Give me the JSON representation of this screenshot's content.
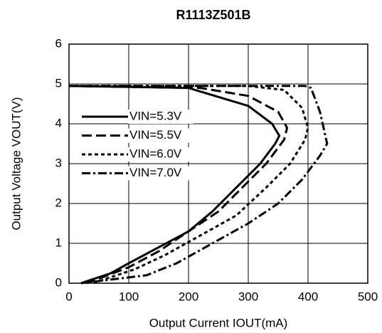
{
  "chart_data": {
    "type": "line",
    "title": "R1113Z501B",
    "xlabel": "Output Current IOUT(mA)",
    "ylabel": "Output Voltage VOUT(V)",
    "xlim": [
      0,
      500
    ],
    "xticks": [
      0,
      100,
      200,
      300,
      400,
      500
    ],
    "ylim": [
      0,
      6
    ],
    "yticks": [
      0,
      1,
      2,
      3,
      4,
      5,
      6
    ],
    "grid": true,
    "legend": "upper left",
    "series": [
      {
        "name": "VIN=5.3V",
        "color": "#000000",
        "dash": "solid",
        "x": [
          0,
          200,
          300,
          340,
          352,
          345,
          320,
          280,
          240,
          200,
          150,
          100,
          70,
          20
        ],
        "values": [
          4.95,
          4.9,
          4.45,
          4.0,
          3.7,
          3.5,
          3.0,
          2.4,
          1.8,
          1.3,
          0.9,
          0.5,
          0.25,
          0
        ]
      },
      {
        "name": "VIN=5.5V",
        "color": "#000000",
        "dash": "dash",
        "x": [
          0,
          220,
          300,
          350,
          365,
          360,
          330,
          290,
          250,
          200,
          150,
          100,
          30
        ],
        "values": [
          4.95,
          4.9,
          4.7,
          4.3,
          3.9,
          3.6,
          3.0,
          2.4,
          1.8,
          1.3,
          0.8,
          0.4,
          0
        ]
      },
      {
        "name": "VIN=6.0V",
        "color": "#000000",
        "dash": "dot",
        "x": [
          0,
          300,
          360,
          390,
          400,
          395,
          370,
          330,
          280,
          220,
          160,
          110,
          40
        ],
        "values": [
          4.95,
          4.95,
          4.85,
          4.4,
          3.9,
          3.6,
          3.0,
          2.4,
          1.7,
          1.2,
          0.7,
          0.35,
          0
        ]
      },
      {
        "name": "VIN=7.0V",
        "color": "#000000",
        "dash": "dashdot",
        "x": [
          0,
          395,
          405,
          420,
          432,
          420,
          390,
          350,
          300,
          240,
          180,
          130,
          20
        ],
        "values": [
          4.95,
          4.95,
          4.9,
          4.3,
          3.5,
          3.2,
          2.6,
          2.0,
          1.5,
          1.0,
          0.5,
          0.2,
          0
        ]
      }
    ]
  }
}
